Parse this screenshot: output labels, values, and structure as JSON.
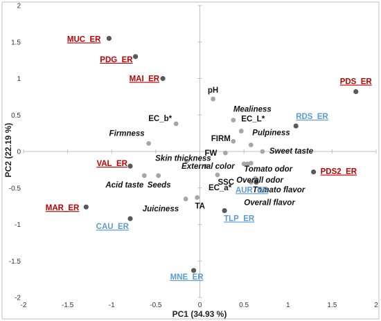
{
  "chart_data": {
    "type": "scatter",
    "title": "",
    "xlabel": "PC1 (34.93 %)",
    "ylabel": "PC2 (22.19 %)",
    "xlim": [
      -2,
      2
    ],
    "ylim": [
      -2,
      2
    ],
    "xticks": [
      "-2",
      "-1.5",
      "-1",
      "-0.5",
      "0",
      "0.5",
      "1",
      "1.5",
      "2"
    ],
    "yticks": [
      "2",
      "1.5",
      "1",
      "0.5",
      "0",
      "-0.5",
      "-1",
      "-1.5",
      "-2"
    ],
    "grid": false,
    "colors": {
      "variable_point": "#a6a6a6",
      "accession_point": "#595959",
      "red_label": "#c00000",
      "blue_label": "#5b9bd5",
      "variable_label": "#111111",
      "axis_line": "#bfbfbf",
      "frame": "#bfbfbf"
    },
    "series": [
      {
        "points": [
          {
            "label": "pH",
            "x": 0.15,
            "y": 0.72
          },
          {
            "label": "Mealiness",
            "x": 0.38,
            "y": 0.43
          },
          {
            "label": "EC_L*",
            "x": 0.47,
            "y": 0.28
          },
          {
            "label": "EC_b*",
            "x": -0.27,
            "y": 0.38
          },
          {
            "label": "FIRM",
            "x": 0.38,
            "y": 0.14
          },
          {
            "label": "Pulpiness",
            "x": 0.58,
            "y": 0.09
          },
          {
            "label": "Firmness",
            "x": -0.58,
            "y": 0.11
          },
          {
            "label": "FW",
            "x": 0.29,
            "y": -0.02
          },
          {
            "label": "Sweet taste",
            "x": 0.71,
            "y": 0.0
          },
          {
            "label": "Skin thickness",
            "x": -0.15,
            "y": -0.13
          },
          {
            "label": "External color",
            "x": 0.07,
            "y": -0.2
          },
          {
            "label": "Tomato odor",
            "x": 0.58,
            "y": -0.16
          },
          {
            "label": "SSC",
            "x": 0.5,
            "y": -0.17
          },
          {
            "label": "Overall odor",
            "x": 0.54,
            "y": -0.17
          },
          {
            "label": "Tomato flavor",
            "x": 0.63,
            "y": -0.37
          },
          {
            "label": "EC_a*",
            "x": 0.2,
            "y": -0.32
          },
          {
            "label": "Acid taste",
            "x": -0.63,
            "y": -0.33
          },
          {
            "label": "Seeds",
            "x": -0.47,
            "y": -0.33
          },
          {
            "label": "Overall flavor",
            "x": 0.58,
            "y": -0.42
          },
          {
            "label": "Juiciness",
            "x": -0.16,
            "y": -0.65
          },
          {
            "label": "TA",
            "x": -0.03,
            "y": -0.63
          }
        ]
      },
      {
        "points": [
          {
            "label": "MUC_ER",
            "x": -1.03,
            "y": 1.55,
            "color": "red"
          },
          {
            "label": "PDG_ER",
            "x": -0.73,
            "y": 1.3,
            "color": "red"
          },
          {
            "label": "MAI_ER",
            "x": -0.42,
            "y": 1.0,
            "color": "red"
          },
          {
            "label": "PDS_ER",
            "x": 1.77,
            "y": 0.82,
            "color": "red"
          },
          {
            "label": "RDS_ER",
            "x": 1.09,
            "y": 0.35,
            "color": "blue"
          },
          {
            "label": "VAL_ER",
            "x": -0.79,
            "y": -0.2,
            "color": "red"
          },
          {
            "label": "PDS2_ER",
            "x": 1.29,
            "y": -0.28,
            "color": "red"
          },
          {
            "label": "AUR_ER",
            "x": 0.64,
            "y": -0.42,
            "color": "blue"
          },
          {
            "label": "MAR_ER",
            "x": -1.29,
            "y": -0.76,
            "color": "red"
          },
          {
            "label": "TLP_ER",
            "x": 0.28,
            "y": -0.81,
            "color": "blue"
          },
          {
            "label": "CAU_ER",
            "x": -0.79,
            "y": -0.92,
            "color": "blue"
          },
          {
            "label": "MNE_ER",
            "x": -0.07,
            "y": -1.63,
            "color": "blue"
          }
        ]
      }
    ]
  }
}
